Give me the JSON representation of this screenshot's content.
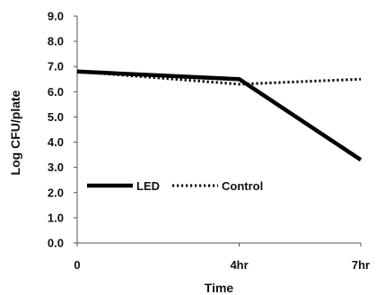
{
  "chart_data": {
    "type": "line",
    "title": "",
    "xlabel": "Time",
    "ylabel": "Log CFU/plate",
    "x_categories": [
      "0",
      "4hr",
      "7hr"
    ],
    "x_positions": [
      0,
      4,
      7
    ],
    "ylim": [
      0,
      9
    ],
    "y_ticks": [
      "0.0",
      "1.0",
      "2.0",
      "3.0",
      "4.0",
      "5.0",
      "6.0",
      "7.0",
      "8.0",
      "9.0"
    ],
    "grid": false,
    "legend_position": "bottom-left",
    "series": [
      {
        "name": "LED",
        "style": "solid",
        "color": "#000000",
        "x": [
          0,
          4,
          7
        ],
        "values": [
          6.8,
          6.5,
          3.3
        ]
      },
      {
        "name": "Control",
        "style": "dotted",
        "color": "#000000",
        "x": [
          0,
          4,
          7
        ],
        "values": [
          6.8,
          6.3,
          6.5
        ]
      }
    ]
  }
}
